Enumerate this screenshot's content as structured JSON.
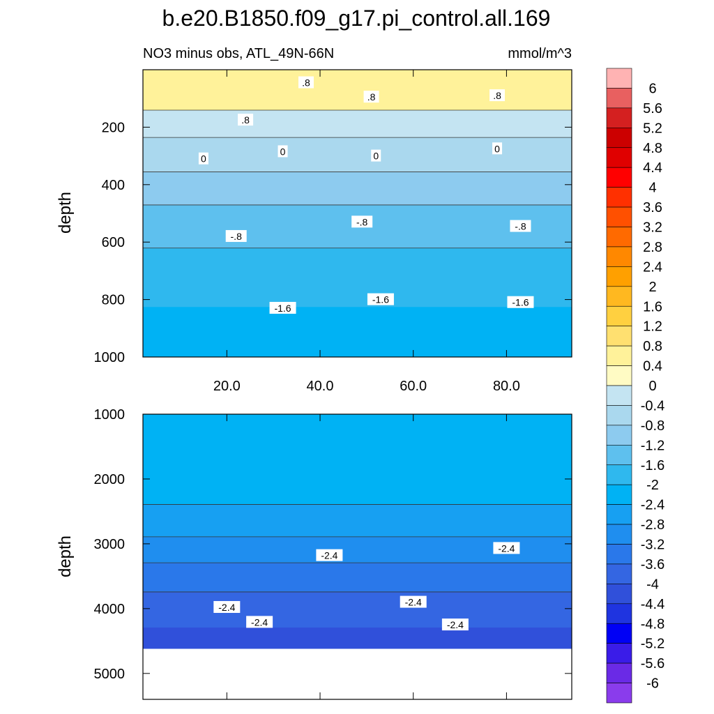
{
  "chart_data": {
    "type": "heatmap",
    "title": "b.e20.B1850.f09_g17.pi_control.all.169",
    "subtitle_left": "NO3 minus obs, ATL_49N-66N",
    "subtitle_right": "mmol/m^3",
    "ylabel": "depth",
    "x_range": [
      2,
      94
    ],
    "x_ticks": [
      20,
      40,
      60,
      80
    ],
    "x_tick_labels": [
      "20.0",
      "40.0",
      "60.0",
      "80.0"
    ],
    "upper_panel": {
      "y_range": [
        0,
        1000
      ],
      "y_ticks": [
        200,
        400,
        600,
        800,
        1000
      ],
      "y_tick_labels": [
        "200",
        "400",
        "600",
        "800",
        "1000"
      ],
      "bands": [
        {
          "level": 0.8,
          "top": 0,
          "bottom": 165
        },
        {
          "level": 0.0,
          "top": 165,
          "bottom": 260
        },
        {
          "level": -0.4,
          "top": 260,
          "bottom": 380
        },
        {
          "level": -0.8,
          "top": 380,
          "bottom": 495
        },
        {
          "level": -1.2,
          "top": 495,
          "bottom": 645
        },
        {
          "level": -1.6,
          "top": 645,
          "bottom": 850
        },
        {
          "level": -2.0,
          "top": 850,
          "bottom": 1000
        }
      ],
      "contour_labels": [
        {
          "x": 37,
          "y": 45,
          "text": ".8"
        },
        {
          "x": 51,
          "y": 95,
          "text": ".8"
        },
        {
          "x": 78,
          "y": 90,
          "text": ".8"
        },
        {
          "x": 24,
          "y": 175,
          "text": ".8"
        },
        {
          "x": 15,
          "y": 310,
          "text": "0"
        },
        {
          "x": 32,
          "y": 285,
          "text": "0"
        },
        {
          "x": 52,
          "y": 300,
          "text": "0"
        },
        {
          "x": 78,
          "y": 275,
          "text": "0"
        },
        {
          "x": 22,
          "y": 580,
          "text": "-.8"
        },
        {
          "x": 49,
          "y": 530,
          "text": "-.8"
        },
        {
          "x": 83,
          "y": 545,
          "text": "-.8"
        },
        {
          "x": 32,
          "y": 830,
          "text": "-1.6"
        },
        {
          "x": 53,
          "y": 800,
          "text": "-1.6"
        },
        {
          "x": 83,
          "y": 810,
          "text": "-1.6"
        }
      ]
    },
    "lower_panel": {
      "y_range": [
        1000,
        5400
      ],
      "y_ticks": [
        1000,
        2000,
        3000,
        4000,
        5000
      ],
      "y_tick_labels": [
        "1000",
        "2000",
        "3000",
        "4000",
        "5000"
      ],
      "data_bottom": 4620,
      "bands": [
        {
          "level": -2.0,
          "top": 1000,
          "bottom": 2500
        },
        {
          "level": -2.4,
          "top": 2500,
          "bottom": 3000
        },
        {
          "level": -2.8,
          "top": 3000,
          "bottom": 3400
        },
        {
          "level": -3.2,
          "top": 3400,
          "bottom": 3850
        },
        {
          "level": -3.6,
          "top": 3850,
          "bottom": 4400
        },
        {
          "level": -4.0,
          "top": 4400,
          "bottom": 4620
        }
      ],
      "contour_labels": [
        {
          "x": 42,
          "y": 3180,
          "text": "-2.4"
        },
        {
          "x": 80,
          "y": 3070,
          "text": "-2.4"
        },
        {
          "x": 20,
          "y": 3980,
          "text": "-2.4"
        },
        {
          "x": 27,
          "y": 4210,
          "text": "-2.4"
        },
        {
          "x": 60,
          "y": 3900,
          "text": "-2.4"
        },
        {
          "x": 69,
          "y": 4250,
          "text": "-2.4"
        }
      ]
    },
    "colorbar": {
      "levels": [
        "6",
        "5.6",
        "5.2",
        "4.8",
        "4.4",
        "4",
        "3.6",
        "3.2",
        "2.8",
        "2.4",
        "2",
        "1.6",
        "1.2",
        "0.8",
        "0.4",
        "0",
        "-0.4",
        "-0.8",
        "-1.2",
        "-1.6",
        "-2",
        "-2.4",
        "-2.8",
        "-3.2",
        "-3.6",
        "-4",
        "-4.4",
        "-4.8",
        "-5.2",
        "-5.6",
        "-6"
      ],
      "colors": [
        "#ffb3b3",
        "#e86060",
        "#d42020",
        "#cc0000",
        "#e00000",
        "#ff0000",
        "#ff3000",
        "#ff5000",
        "#ff6a00",
        "#ff8800",
        "#ffa000",
        "#ffb820",
        "#ffd040",
        "#ffe070",
        "#fff29a",
        "#fffbc4",
        "#c4e4f2",
        "#aad8ee",
        "#8dcbef",
        "#5ec0ee",
        "#2fb8ee",
        "#00b2f4",
        "#17a0f2",
        "#1f8eef",
        "#2a78ea",
        "#3466e2",
        "#3050da",
        "#1f34e0",
        "#0000f5",
        "#3a1ce8",
        "#6a2ae6",
        "#8a3cec"
      ]
    }
  }
}
